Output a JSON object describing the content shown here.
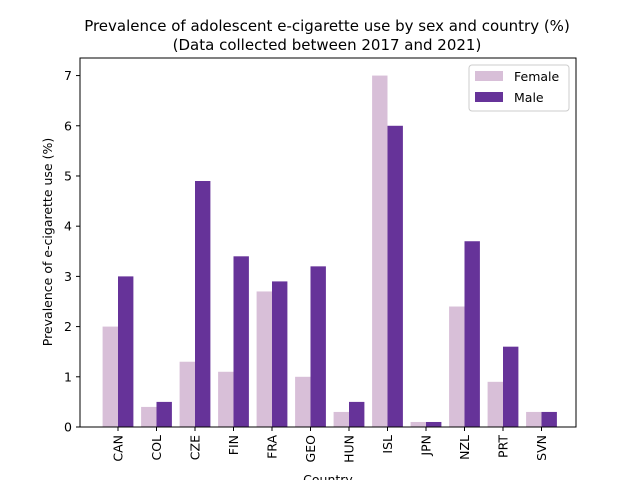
{
  "chart_data": {
    "type": "bar",
    "title": "Prevalence of adolescent e-cigarette use by sex and country (%)",
    "subtitle": "(Data collected between 2017 and 2021)",
    "xlabel": "Country",
    "ylabel": "Prevalence of e-cigarette use (%)",
    "categories": [
      "CAN",
      "COL",
      "CZE",
      "FIN",
      "FRA",
      "GEO",
      "HUN",
      "ISL",
      "JPN",
      "NZL",
      "PRT",
      "SVN"
    ],
    "series": [
      {
        "name": "Female",
        "color": "#d8bfd8",
        "values": [
          2.0,
          0.4,
          1.3,
          1.1,
          2.7,
          1.0,
          0.3,
          7.0,
          0.1,
          2.4,
          0.9,
          0.3
        ]
      },
      {
        "name": "Male",
        "color": "#663399",
        "values": [
          3.0,
          0.5,
          4.9,
          3.4,
          2.9,
          3.2,
          0.5,
          6.0,
          0.1,
          3.7,
          1.6,
          0.3
        ]
      }
    ],
    "ylim": [
      0,
      7.35
    ],
    "yticks": [
      "0",
      "1",
      "2",
      "3",
      "4",
      "5",
      "6",
      "7"
    ],
    "legend_position": "top-right"
  }
}
